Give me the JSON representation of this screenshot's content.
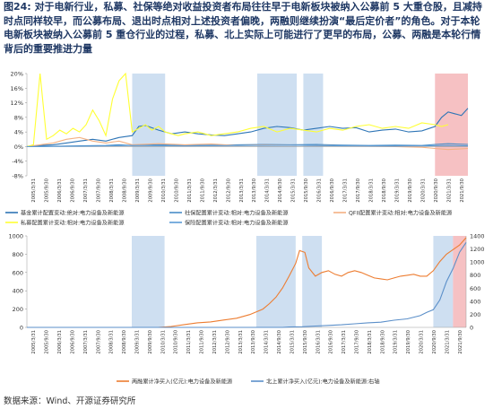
{
  "caption": {
    "figure_no": "图24:",
    "text": "对于电新行业，私募、社保等绝对收益投资者布局往往早于电新板块被纳入公募前 5 大重仓股，且减持时点同样较早，而公募布局、退出时点相对上述投资者偏晚，两融则继续扮演“最后定价者”的角色。对于本轮电新板块被纳入公募前 5 重仓行业的过程，私募、北上实际上可能进行了更早的布局，公募、两融是本轮行情背后的重要推进力量"
  },
  "source": "数据来源：Wind、开源证券研究所",
  "colors": {
    "fund": "#2e75b6",
    "qfii": "#f4b183",
    "insurance": "#5b9bd5",
    "social": "#4a8ec8",
    "private": "#ffff33",
    "margin": "#ed7d31",
    "northbound": "#5b8fc9",
    "band_blue": "#c5d9ee",
    "band_red": "#f4b6b9"
  },
  "chart_data": [
    {
      "type": "line",
      "title": "",
      "xlabel": "",
      "ylabel": "",
      "ylim": [
        -8,
        20
      ],
      "yticks": [
        "-8%",
        "-4%",
        "0%",
        "4%",
        "8%",
        "12%",
        "16%",
        "20%"
      ],
      "ytick_values": [
        -8,
        -4,
        0,
        4,
        8,
        12,
        16,
        20
      ],
      "xticks": [
        "2005/3/31",
        "2005/9/30",
        "2006/3/31",
        "2006/9/30",
        "2007/3/31",
        "2007/9/30",
        "2008/3/31",
        "2008/9/30",
        "2009/3/31",
        "2009/9/30",
        "2010/3/31",
        "2010/9/30",
        "2011/3/31",
        "2011/9/30",
        "2012/3/31",
        "2012/9/30",
        "2013/3/31",
        "2013/9/30",
        "2014/3/31",
        "2014/9/30",
        "2015/3/31",
        "2015/9/30",
        "2016/3/31",
        "2016/9/30",
        "2017/3/31",
        "2017/9/30",
        "2018/3/31",
        "2018/9/30",
        "2019/3/31",
        "2019/9/30",
        "2020/3/31",
        "2020/9/30",
        "2021/3/31",
        "2021/9/30"
      ],
      "x_start": 2005.0,
      "x_end": 2021.75,
      "shaded_periods_blue": [
        [
          2009.0,
          2010.25
        ],
        [
          2013.75,
          2015.25
        ],
        [
          2015.5,
          2016.25
        ]
      ],
      "shaded_periods_red": [
        [
          2020.5,
          2021.75
        ]
      ],
      "legend_position": "bottom",
      "series": [
        {
          "name": "基金累计配置变动:绝对:电力设备及新能源",
          "color_key": "fund",
          "x": [
            2005.0,
            2005.5,
            2006.0,
            2006.5,
            2007.0,
            2007.5,
            2008.0,
            2008.5,
            2009.0,
            2009.25,
            2009.5,
            2010.0,
            2010.5,
            2011.0,
            2011.5,
            2012.0,
            2012.5,
            2013.0,
            2013.5,
            2014.0,
            2014.5,
            2015.0,
            2015.5,
            2016.0,
            2016.5,
            2017.0,
            2017.5,
            2018.0,
            2018.5,
            2019.0,
            2019.5,
            2020.0,
            2020.5,
            2020.75,
            2021.0,
            2021.25,
            2021.5,
            2021.75
          ],
          "y": [
            0,
            0.3,
            0.5,
            1.0,
            1.5,
            2.0,
            1.5,
            2.5,
            3.0,
            5.5,
            5.8,
            4.5,
            3.5,
            4.0,
            3.5,
            3.2,
            3.0,
            3.5,
            4.0,
            5.0,
            5.5,
            5.2,
            4.5,
            5.0,
            5.5,
            5.0,
            5.2,
            4.0,
            4.5,
            4.8,
            4.0,
            4.3,
            5.5,
            8.0,
            9.5,
            9.0,
            8.5,
            10.5
          ]
        },
        {
          "name": "社保配置累计变动:相对:电力设备及新能源",
          "color_key": "social",
          "x": [
            2005.0,
            2006.0,
            2007.0,
            2008.0,
            2008.5,
            2009.0,
            2010.0,
            2011.0,
            2012.0,
            2013.0,
            2014.0,
            2015.0,
            2016.0,
            2017.0,
            2018.0,
            2019.0,
            2020.0,
            2020.5,
            2021.0,
            2021.75
          ],
          "y": [
            0,
            0.1,
            0.2,
            0.3,
            0.5,
            0.3,
            0.5,
            0.3,
            0.4,
            0.5,
            0.6,
            0.5,
            0.6,
            0.4,
            0.3,
            0.4,
            0.3,
            0.6,
            0.8,
            0.6
          ]
        },
        {
          "name": "QFII配置累计变动:相对:电力设备及新能源",
          "color_key": "qfii",
          "x": [
            2005.0,
            2005.5,
            2006.0,
            2006.5,
            2007.0,
            2007.5,
            2008.0,
            2008.5,
            2009.0,
            2010.0,
            2011.0,
            2012.0,
            2013.0,
            2014.0,
            2015.0,
            2016.0,
            2017.0,
            2018.0,
            2019.0,
            2020.0,
            2020.5,
            2021.0,
            2021.75
          ],
          "y": [
            0,
            0.5,
            1.0,
            2.0,
            2.5,
            1.5,
            1.0,
            1.5,
            0.5,
            0.8,
            0.5,
            0.7,
            0.3,
            0.5,
            0.4,
            0.3,
            0.2,
            0.1,
            0.0,
            -0.2,
            -0.5,
            -0.8,
            -0.5
          ]
        },
        {
          "name": "私募配置累计变动:相对:电力设备及新能源",
          "color_key": "private",
          "x": [
            2005.0,
            2005.25,
            2005.5,
            2005.75,
            2006.0,
            2006.25,
            2006.5,
            2006.75,
            2007.0,
            2007.25,
            2007.5,
            2007.75,
            2008.0,
            2008.25,
            2008.5,
            2008.75,
            2009.0,
            2009.25,
            2009.5,
            2009.75,
            2010.0,
            2010.25,
            2010.5,
            2010.75,
            2011.0,
            2011.5,
            2012.0,
            2012.5,
            2013.0,
            2013.5,
            2014.0,
            2014.5,
            2015.0,
            2015.5,
            2016.0,
            2016.5,
            2017.0,
            2017.5,
            2018.0,
            2018.5,
            2019.0,
            2019.5,
            2020.0,
            2020.5,
            2020.75,
            2021.0
          ],
          "y": [
            0,
            0.5,
            20.0,
            2.0,
            3.0,
            4.5,
            3.5,
            5.0,
            4.0,
            6.0,
            10.0,
            7.0,
            3.0,
            13.0,
            18.0,
            20.0,
            4.0,
            5.0,
            6.0,
            4.5,
            5.5,
            4.0,
            3.5,
            3.0,
            3.5,
            4.0,
            3.0,
            3.5,
            4.0,
            5.0,
            5.5,
            4.0,
            5.0,
            4.5,
            4.0,
            5.0,
            4.5,
            5.5,
            6.0,
            5.0,
            5.5,
            5.0,
            6.5,
            6.0,
            5.5,
            6.0
          ]
        },
        {
          "name": "保险配置累计变动:相对:电力设备及新能源",
          "color_key": "insurance",
          "x": [
            2005.0,
            2007.0,
            2009.0,
            2011.0,
            2013.0,
            2015.0,
            2017.0,
            2019.0,
            2020.0,
            2021.0,
            2021.75
          ],
          "y": [
            0,
            0.1,
            0.3,
            0.2,
            0.3,
            0.4,
            0.2,
            0.1,
            0.2,
            0.3,
            0.2
          ]
        }
      ]
    },
    {
      "type": "line",
      "title": "",
      "xlabel": "",
      "ylabel": "",
      "ylim": [
        0,
        1000
      ],
      "yticks": [
        "0",
        "200",
        "400",
        "600",
        "800",
        "1000"
      ],
      "ytick_values": [
        0,
        200,
        400,
        600,
        800,
        1000
      ],
      "xticks": [
        "2005/3/31",
        "2005/9/30",
        "2006/3/31",
        "2006/9/30",
        "2007/3/31",
        "2007/9/30",
        "2008/3/31",
        "2008/9/30",
        "2009/3/31",
        "2009/9/30",
        "2010/3/31",
        "2010/9/30",
        "2011/3/31",
        "2011/9/30",
        "2012/3/31",
        "2012/9/30",
        "2013/3/31",
        "2013/9/30",
        "2014/3/31",
        "2014/9/30",
        "2015/3/31",
        "2015/9/30",
        "2016/3/31",
        "2016/9/30",
        "2017/3/31",
        "2017/9/30",
        "2018/3/31",
        "2018/9/30",
        "2019/3/31",
        "2019/9/30",
        "2020/3/31",
        "2020/9/30",
        "2021/3/31",
        "2021/9/30"
      ],
      "yticks_right": [
        "0",
        "200",
        "400",
        "600",
        "800",
        "1000",
        "1200",
        "1400"
      ],
      "ytick_values_right": [
        0,
        200,
        400,
        600,
        800,
        1000,
        1200,
        1400
      ],
      "ylim_right": [
        0,
        1400
      ],
      "x_start": 2005.0,
      "x_end": 2021.75,
      "shaded_periods_blue": [
        [
          2009.0,
          2010.25
        ],
        [
          2013.75,
          2015.25
        ],
        [
          2015.5,
          2016.25
        ],
        [
          2020.5,
          2021.25
        ]
      ],
      "shaded_periods_red": [
        [
          2021.25,
          2021.75
        ]
      ],
      "legend_position": "bottom",
      "series": [
        {
          "name": "两融累计净买入(亿元):电力设备及新能源",
          "color_key": "margin",
          "axis": "left",
          "x": [
            2005.0,
            2010.0,
            2010.5,
            2011.0,
            2011.5,
            2012.0,
            2012.5,
            2013.0,
            2013.5,
            2014.0,
            2014.25,
            2014.5,
            2014.75,
            2015.0,
            2015.25,
            2015.4,
            2015.6,
            2015.75,
            2016.0,
            2016.25,
            2016.5,
            2016.75,
            2017.0,
            2017.25,
            2017.5,
            2017.75,
            2018.0,
            2018.25,
            2018.5,
            2018.75,
            2019.0,
            2019.25,
            2019.5,
            2019.75,
            2020.0,
            2020.25,
            2020.5,
            2020.75,
            2021.0,
            2021.25,
            2021.5,
            2021.75
          ],
          "y": [
            0,
            0,
            10,
            30,
            50,
            60,
            80,
            100,
            140,
            200,
            260,
            330,
            430,
            560,
            700,
            840,
            820,
            650,
            560,
            600,
            620,
            580,
            560,
            600,
            620,
            600,
            570,
            540,
            530,
            520,
            540,
            560,
            570,
            580,
            560,
            560,
            620,
            720,
            800,
            850,
            900,
            980
          ]
        },
        {
          "name": "北上累计净买入(亿元):电力设备及新能源:右轴",
          "color_key": "northbound",
          "axis": "right",
          "x": [
            2005.0,
            2014.75,
            2015.0,
            2015.5,
            2016.0,
            2016.5,
            2017.0,
            2017.5,
            2018.0,
            2018.5,
            2019.0,
            2019.5,
            2020.0,
            2020.25,
            2020.5,
            2020.75,
            2021.0,
            2021.25,
            2021.5,
            2021.75
          ],
          "y": [
            0,
            0,
            5,
            10,
            20,
            30,
            40,
            55,
            70,
            80,
            110,
            130,
            180,
            230,
            270,
            420,
            700,
            900,
            1150,
            1300
          ]
        }
      ]
    }
  ]
}
